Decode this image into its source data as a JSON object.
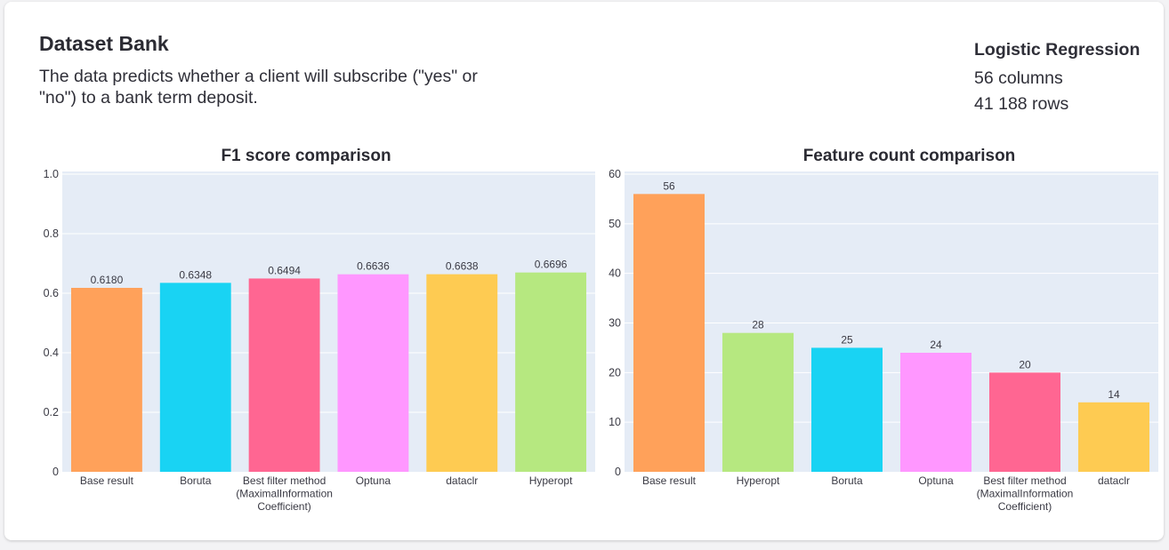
{
  "dataset": {
    "title": "Dataset Bank",
    "description": "The data predicts whether a client will subscribe (\"yes\" or \"no\") to a bank term deposit."
  },
  "model": {
    "name": "Logistic Regression",
    "columns": "56 columns",
    "rows": "41 188 rows"
  },
  "chart_data": [
    {
      "type": "bar",
      "title": "F1 score comparison",
      "categories": [
        "Base result",
        "Boruta",
        "Best filter method (MaximalInformation Coefficient)",
        "Optuna",
        "dataclr",
        "Hyperopt"
      ],
      "category_lines": [
        [
          "Base result"
        ],
        [
          "Boruta"
        ],
        [
          "Best filter method",
          "(MaximalInformation",
          "Coefficient)"
        ],
        [
          "Optuna"
        ],
        [
          "dataclr"
        ],
        [
          "Hyperopt"
        ]
      ],
      "values": [
        0.618,
        0.6348,
        0.6494,
        0.6636,
        0.6638,
        0.6696
      ],
      "value_labels": [
        "0.6180",
        "0.6348",
        "0.6494",
        "0.6636",
        "0.6638",
        "0.6696"
      ],
      "colors": [
        "#ffa15a",
        "#19d3f3",
        "#ff6692",
        "#ff97ff",
        "#fecb52",
        "#b6e880"
      ],
      "ylim": [
        0,
        1
      ],
      "yticks": [
        0,
        0.2,
        0.4,
        0.6,
        0.8,
        1
      ],
      "ytick_labels": [
        "0",
        "0.2",
        "0.4",
        "0.6",
        "0.8",
        "1.0"
      ],
      "xlabel": "",
      "ylabel": "",
      "grid": true,
      "plot_background": "#e5ecf6"
    },
    {
      "type": "bar",
      "title": "Feature count comparison",
      "categories": [
        "Base result",
        "Hyperopt",
        "Boruta",
        "Optuna",
        "Best filter method (MaximalInformation Coefficient)",
        "dataclr"
      ],
      "category_lines": [
        [
          "Base result"
        ],
        [
          "Hyperopt"
        ],
        [
          "Boruta"
        ],
        [
          "Optuna"
        ],
        [
          "Best filter method",
          "(MaximalInformation",
          "Coefficient)"
        ],
        [
          "dataclr"
        ]
      ],
      "values": [
        56,
        28,
        25,
        24,
        20,
        14
      ],
      "value_labels": [
        "56",
        "28",
        "25",
        "24",
        "20",
        "14"
      ],
      "colors": [
        "#ffa15a",
        "#b6e880",
        "#19d3f3",
        "#ff97ff",
        "#ff6692",
        "#fecb52"
      ],
      "ylim": [
        0,
        60
      ],
      "yticks": [
        0,
        10,
        20,
        30,
        40,
        50,
        60
      ],
      "ytick_labels": [
        "0",
        "10",
        "20",
        "30",
        "40",
        "50",
        "60"
      ],
      "xlabel": "",
      "ylabel": "",
      "grid": true,
      "plot_background": "#e5ecf6"
    }
  ]
}
